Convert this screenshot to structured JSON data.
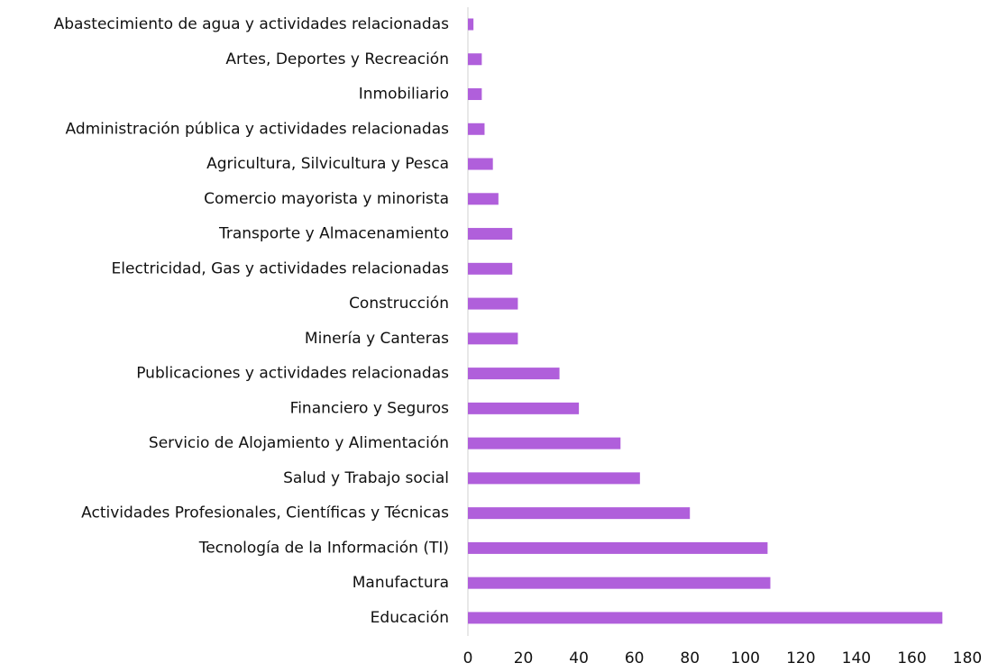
{
  "chart_data": {
    "type": "hbar",
    "categories": [
      "Abastecimiento de agua y actividades relacionadas",
      "Artes, Deportes y Recreación",
      "Inmobiliario",
      "Administración pública y actividades relacionadas",
      "Agricultura, Silvicultura y Pesca",
      "Comercio mayorista y minorista",
      "Transporte y Almacenamiento",
      "Electricidad, Gas y actividades relacionadas",
      "Construcción",
      "Minería y Canteras",
      "Publicaciones y actividades relacionadas",
      "Financiero y Seguros",
      "Servicio de Alojamiento y Alimentación",
      "Salud y Trabajo social",
      "Actividades Profesionales, Científicas y Técnicas",
      "Tecnología de la Información (TI)",
      "Manufactura",
      "Educación"
    ],
    "values": [
      2,
      5,
      5,
      6,
      9,
      11,
      16,
      16,
      18,
      18,
      33,
      40,
      55,
      62,
      80,
      108,
      109,
      171
    ],
    "color": "#b05fdb",
    "xlim": [
      0,
      180
    ],
    "xticks": [
      0,
      20,
      40,
      60,
      80,
      100,
      120,
      140,
      160,
      180
    ]
  }
}
